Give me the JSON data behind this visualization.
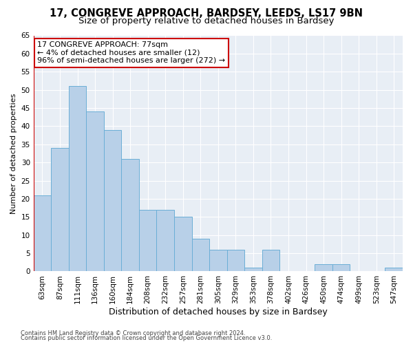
{
  "title1": "17, CONGREVE APPROACH, BARDSEY, LEEDS, LS17 9BN",
  "title2": "Size of property relative to detached houses in Bardsey",
  "xlabel": "Distribution of detached houses by size in Bardsey",
  "ylabel": "Number of detached properties",
  "categories": [
    "63sqm",
    "87sqm",
    "111sqm",
    "136sqm",
    "160sqm",
    "184sqm",
    "208sqm",
    "232sqm",
    "257sqm",
    "281sqm",
    "305sqm",
    "329sqm",
    "353sqm",
    "378sqm",
    "402sqm",
    "426sqm",
    "450sqm",
    "474sqm",
    "499sqm",
    "523sqm",
    "547sqm"
  ],
  "values": [
    21,
    34,
    51,
    44,
    39,
    31,
    17,
    17,
    15,
    9,
    6,
    6,
    1,
    6,
    0,
    0,
    2,
    2,
    0,
    0,
    1
  ],
  "bar_color": "#b8d0e8",
  "bar_edge_color": "#6aaed6",
  "vline_color": "#cc0000",
  "annotation_text": "17 CONGREVE APPROACH: 77sqm\n← 4% of detached houses are smaller (12)\n96% of semi-detached houses are larger (272) →",
  "annotation_box_color": "#ffffff",
  "annotation_box_edge": "#cc0000",
  "ylim": [
    0,
    65
  ],
  "yticks": [
    0,
    5,
    10,
    15,
    20,
    25,
    30,
    35,
    40,
    45,
    50,
    55,
    60,
    65
  ],
  "footer1": "Contains HM Land Registry data © Crown copyright and database right 2024.",
  "footer2": "Contains public sector information licensed under the Open Government Licence v3.0.",
  "fig_bg_color": "#ffffff",
  "plot_bg_color": "#e8eef5",
  "grid_color": "#ffffff",
  "title1_fontsize": 10.5,
  "title2_fontsize": 9.5,
  "xlabel_fontsize": 9,
  "ylabel_fontsize": 8,
  "tick_fontsize": 7.5,
  "annotation_fontsize": 8,
  "footer_fontsize": 6
}
